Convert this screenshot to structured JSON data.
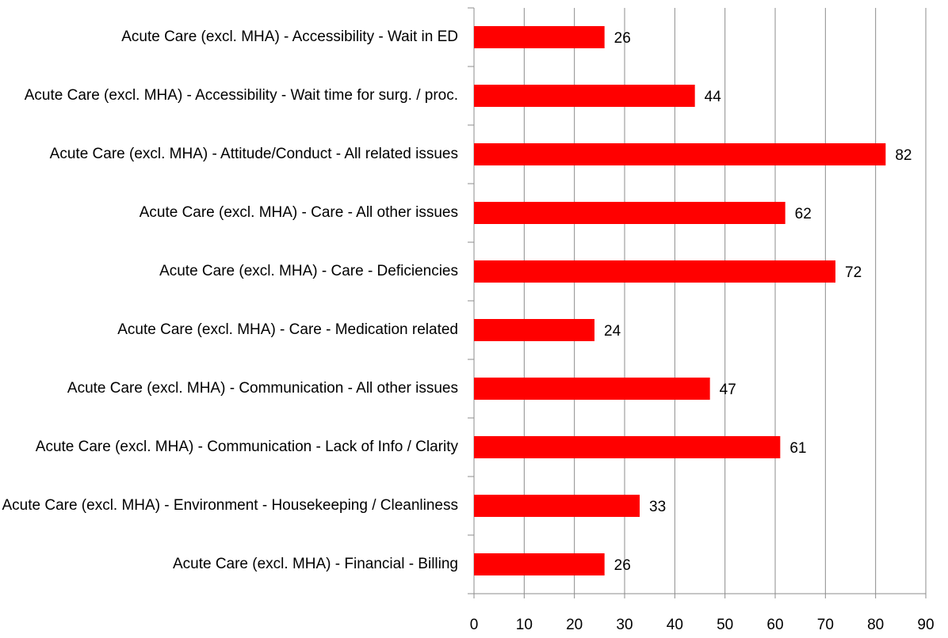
{
  "chart_data": {
    "type": "bar",
    "orientation": "horizontal",
    "categories": [
      "Acute Care (excl. MHA) - Accessibility - Wait in ED",
      "Acute Care (excl. MHA) - Accessibility - Wait time for surg. / proc.",
      "Acute Care (excl. MHA) - Attitude/Conduct - All related issues",
      "Acute Care (excl. MHA) - Care - All other issues",
      "Acute Care (excl. MHA) - Care - Deficiencies",
      "Acute Care (excl. MHA) - Care - Medication related",
      "Acute Care (excl. MHA) - Communication - All other issues",
      "Acute Care (excl. MHA) - Communication - Lack of Info / Clarity",
      "Acute Care (excl. MHA) - Environment - Housekeeping / Cleanliness",
      "Acute Care (excl. MHA) - Financial - Billing"
    ],
    "values": [
      26,
      44,
      82,
      62,
      72,
      24,
      47,
      61,
      33,
      26
    ],
    "color": "#ff0000",
    "xlim": [
      0,
      90
    ],
    "xticks": [
      0,
      10,
      20,
      30,
      40,
      50,
      60,
      70,
      80,
      90
    ],
    "grid": true
  }
}
